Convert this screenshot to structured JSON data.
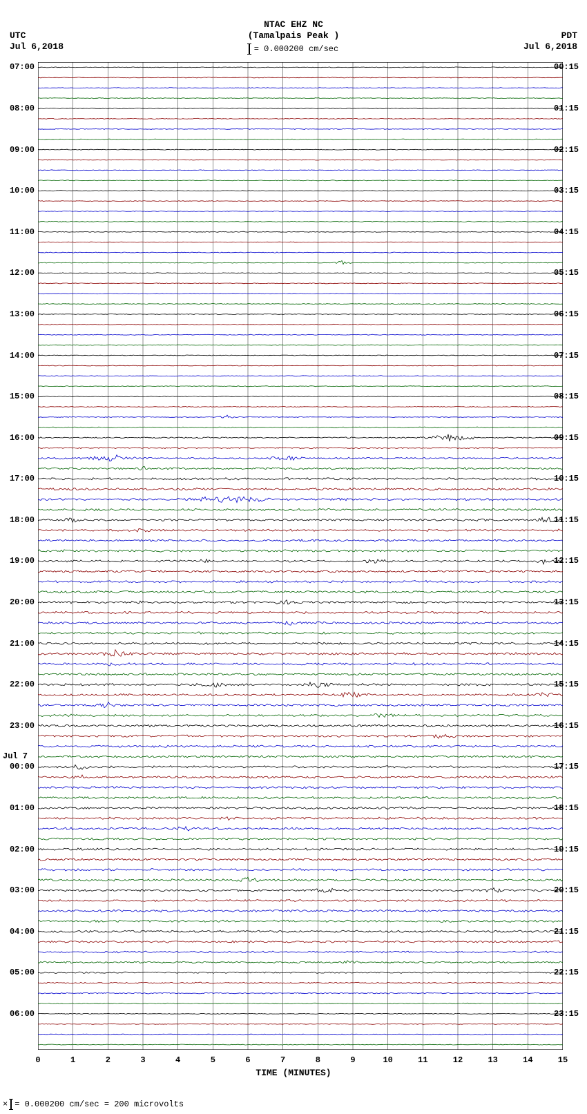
{
  "header": {
    "station": "NTAC EHZ NC",
    "location": "(Tamalpais Peak )",
    "scale_text": "= 0.000200 cm/sec"
  },
  "corners": {
    "tl_tz": "UTC",
    "tl_date": "Jul 6,2018",
    "tr_tz": "PDT",
    "tr_date": "Jul 6,2018"
  },
  "footer": {
    "text": "= 0.000200 cm/sec =    200 microvolts",
    "prefix": "×"
  },
  "xaxis": {
    "title": "TIME (MINUTES)",
    "ticks": [
      0,
      1,
      2,
      3,
      4,
      5,
      6,
      7,
      8,
      9,
      10,
      11,
      12,
      13,
      14,
      15
    ]
  },
  "trace_colors": [
    "#000000",
    "#8b0000",
    "#0000cd",
    "#006400"
  ],
  "grid_color": "#000000",
  "background": "#ffffff",
  "plot": {
    "n_traces": 96,
    "minutes": 15,
    "left_labels": [
      {
        "i": 0,
        "t": "07:00"
      },
      {
        "i": 4,
        "t": "08:00"
      },
      {
        "i": 8,
        "t": "09:00"
      },
      {
        "i": 12,
        "t": "10:00"
      },
      {
        "i": 16,
        "t": "11:00"
      },
      {
        "i": 20,
        "t": "12:00"
      },
      {
        "i": 24,
        "t": "13:00"
      },
      {
        "i": 28,
        "t": "14:00"
      },
      {
        "i": 32,
        "t": "15:00"
      },
      {
        "i": 36,
        "t": "16:00"
      },
      {
        "i": 40,
        "t": "17:00"
      },
      {
        "i": 44,
        "t": "18:00"
      },
      {
        "i": 48,
        "t": "19:00"
      },
      {
        "i": 52,
        "t": "20:00"
      },
      {
        "i": 56,
        "t": "21:00"
      },
      {
        "i": 60,
        "t": "22:00"
      },
      {
        "i": 64,
        "t": "23:00"
      },
      {
        "i": 68,
        "t": "00:00"
      },
      {
        "i": 72,
        "t": "01:00"
      },
      {
        "i": 76,
        "t": "02:00"
      },
      {
        "i": 80,
        "t": "03:00"
      },
      {
        "i": 84,
        "t": "04:00"
      },
      {
        "i": 88,
        "t": "05:00"
      },
      {
        "i": 92,
        "t": "06:00"
      }
    ],
    "day_label": {
      "i": 67,
      "t": "Jul 7"
    },
    "right_labels": [
      {
        "i": 0,
        "t": "00:15"
      },
      {
        "i": 4,
        "t": "01:15"
      },
      {
        "i": 8,
        "t": "02:15"
      },
      {
        "i": 12,
        "t": "03:15"
      },
      {
        "i": 16,
        "t": "04:15"
      },
      {
        "i": 20,
        "t": "05:15"
      },
      {
        "i": 24,
        "t": "06:15"
      },
      {
        "i": 28,
        "t": "07:15"
      },
      {
        "i": 32,
        "t": "08:15"
      },
      {
        "i": 36,
        "t": "09:15"
      },
      {
        "i": 40,
        "t": "10:15"
      },
      {
        "i": 44,
        "t": "11:15"
      },
      {
        "i": 48,
        "t": "12:15"
      },
      {
        "i": 52,
        "t": "13:15"
      },
      {
        "i": 56,
        "t": "14:15"
      },
      {
        "i": 60,
        "t": "15:15"
      },
      {
        "i": 64,
        "t": "16:15"
      },
      {
        "i": 68,
        "t": "17:15"
      },
      {
        "i": 72,
        "t": "18:15"
      },
      {
        "i": 76,
        "t": "19:15"
      },
      {
        "i": 80,
        "t": "20:15"
      },
      {
        "i": 84,
        "t": "21:15"
      },
      {
        "i": 88,
        "t": "22:15"
      },
      {
        "i": 92,
        "t": "23:15"
      }
    ],
    "amp_base": 0.6,
    "amp_mid": 1.8,
    "events": [
      {
        "trace": 19,
        "x": 8.7,
        "w": 0.3,
        "a": 3.0
      },
      {
        "trace": 34,
        "x": 5.4,
        "w": 0.4,
        "a": 3.0
      },
      {
        "trace": 36,
        "x": 11.8,
        "w": 0.9,
        "a": 5.5
      },
      {
        "trace": 38,
        "x": 2.0,
        "w": 0.9,
        "a": 6.5
      },
      {
        "trace": 38,
        "x": 7.0,
        "w": 0.7,
        "a": 4.5
      },
      {
        "trace": 39,
        "x": 3.0,
        "w": 0.2,
        "a": 3.0
      },
      {
        "trace": 42,
        "x": 5.5,
        "w": 1.5,
        "a": 4.0
      },
      {
        "trace": 44,
        "x": 1.0,
        "w": 0.3,
        "a": 3.5
      },
      {
        "trace": 44,
        "x": 14.5,
        "w": 0.4,
        "a": 3.5
      },
      {
        "trace": 45,
        "x": 3.0,
        "w": 0.3,
        "a": 3.0
      },
      {
        "trace": 48,
        "x": 4.8,
        "w": 0.3,
        "a": 3.0
      },
      {
        "trace": 48,
        "x": 9.6,
        "w": 0.4,
        "a": 3.5
      },
      {
        "trace": 48,
        "x": 14.5,
        "w": 0.4,
        "a": 3.5
      },
      {
        "trace": 52,
        "x": 2.8,
        "w": 0.3,
        "a": 3.0
      },
      {
        "trace": 52,
        "x": 7.0,
        "w": 0.4,
        "a": 3.0
      },
      {
        "trace": 54,
        "x": 7.3,
        "w": 0.4,
        "a": 3.5
      },
      {
        "trace": 57,
        "x": 2.2,
        "w": 0.6,
        "a": 5.0
      },
      {
        "trace": 58,
        "x": 2.2,
        "w": 0.3,
        "a": 4.0
      },
      {
        "trace": 60,
        "x": 5.0,
        "w": 0.5,
        "a": 3.5
      },
      {
        "trace": 60,
        "x": 8.0,
        "w": 0.5,
        "a": 3.5
      },
      {
        "trace": 61,
        "x": 9.0,
        "w": 0.5,
        "a": 3.5
      },
      {
        "trace": 61,
        "x": 14.5,
        "w": 0.4,
        "a": 3.5
      },
      {
        "trace": 62,
        "x": 2.0,
        "w": 0.6,
        "a": 3.0
      },
      {
        "trace": 63,
        "x": 10.0,
        "w": 0.6,
        "a": 3.0
      },
      {
        "trace": 65,
        "x": 11.6,
        "w": 0.4,
        "a": 4.0
      },
      {
        "trace": 68,
        "x": 1.2,
        "w": 0.3,
        "a": 3.0
      },
      {
        "trace": 69,
        "x": 1.2,
        "w": 0.3,
        "a": 3.5
      },
      {
        "trace": 73,
        "x": 5.5,
        "w": 0.4,
        "a": 3.0
      },
      {
        "trace": 74,
        "x": 4.3,
        "w": 0.4,
        "a": 3.0
      },
      {
        "trace": 79,
        "x": 6.0,
        "w": 0.5,
        "a": 3.0
      },
      {
        "trace": 80,
        "x": 8.2,
        "w": 0.4,
        "a": 3.0
      },
      {
        "trace": 80,
        "x": 13.0,
        "w": 0.4,
        "a": 3.0
      },
      {
        "trace": 87,
        "x": 9.0,
        "w": 0.4,
        "a": 3.0
      }
    ]
  }
}
